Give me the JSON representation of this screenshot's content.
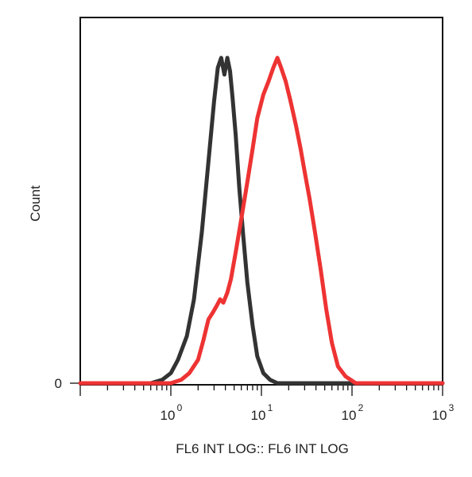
{
  "chart_data": {
    "type": "line",
    "title": "",
    "xlabel": "FL6 INT LOG:: FL6 INT LOG",
    "ylabel": "Count",
    "xscale": "log",
    "xlim": [
      0.1,
      1000
    ],
    "ylim": [
      0,
      100
    ],
    "x_tick_labels": [
      {
        "value": 1,
        "base": "10",
        "exp": "0"
      },
      {
        "value": 10,
        "base": "10",
        "exp": "1"
      },
      {
        "value": 100,
        "base": "10",
        "exp": "2"
      },
      {
        "value": 1000,
        "base": "10",
        "exp": "3"
      }
    ],
    "y_tick_labels": [
      {
        "value": 0,
        "label": "0"
      }
    ],
    "grid": false,
    "legend": "none",
    "series": [
      {
        "color": "#333333",
        "x": [
          0.1,
          0.6,
          0.8,
          1.0,
          1.2,
          1.5,
          1.8,
          2.2,
          2.6,
          3.0,
          3.3,
          3.6,
          3.9,
          4.2,
          4.5,
          4.8,
          5.2,
          5.7,
          6.3,
          7.0,
          8.0,
          9.0,
          10.5,
          12.5,
          15,
          1000
        ],
        "y": [
          0,
          0,
          1,
          3,
          7,
          14,
          25,
          45,
          66,
          84,
          94,
          97,
          92,
          97,
          93,
          85,
          74,
          58,
          44,
          30,
          17,
          8,
          3,
          1,
          0,
          0
        ]
      },
      {
        "color": "#ee3333",
        "x": [
          0.1,
          1.0,
          1.3,
          1.6,
          2.0,
          2.3,
          2.6,
          2.9,
          3.2,
          3.5,
          3.8,
          4.2,
          4.6,
          5.2,
          6.0,
          7.0,
          8.0,
          9.0,
          10.5,
          12,
          13.5,
          15,
          16.5,
          18.5,
          21,
          24,
          27,
          30,
          34,
          39,
          45,
          52,
          60,
          70,
          85,
          110,
          1000
        ],
        "y": [
          0,
          0,
          1,
          3,
          7,
          13,
          19,
          21,
          23,
          25,
          24,
          27,
          31,
          39,
          49,
          60,
          70,
          79,
          86,
          90,
          94,
          97,
          94,
          90,
          84,
          77,
          70,
          63,
          55,
          45,
          34,
          22,
          12,
          5,
          2,
          0,
          0
        ]
      }
    ]
  }
}
